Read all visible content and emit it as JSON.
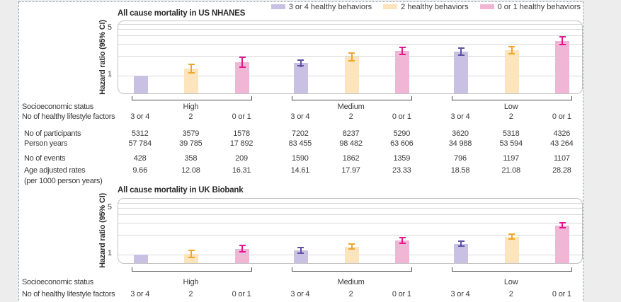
{
  "series": [
    {
      "name": "3 or 4",
      "legend_label": "3 or 4 healthy behaviors",
      "fill": "#c9c1e4",
      "error_color": "#5f51a5"
    },
    {
      "name": "2",
      "legend_label": "2 healthy behaviors",
      "fill": "#fce4bc",
      "error_color": "#f2a52b"
    },
    {
      "name": "0 or 1",
      "legend_label": "0 or 1 healthy behaviors",
      "fill": "#f1b6d6",
      "error_color": "#e3168f"
    }
  ],
  "colors": {
    "canvas_bg": "#ededed",
    "panel_bg": "#ffffff",
    "panel_border": "#7b90a5",
    "plot_border": "#c2c2c2",
    "gridline": "#d8d8d8",
    "bracket": "#4d4d4d",
    "text": "#333333"
  },
  "table": {
    "socio_label": "Socioeconomic status",
    "factors_label": "No of healthy lifestyle factors",
    "groups": [
      "High",
      "Medium",
      "Low"
    ],
    "factors": [
      "3 or 4",
      "2",
      "0 or 1",
      "3 or 4",
      "2",
      "0 or 1",
      "3 or 4",
      "2",
      "0 or 1"
    ],
    "rows": [
      {
        "label": "No of participants",
        "values": [
          "5312",
          "3579",
          "1578",
          "7202",
          "8237",
          "5290",
          "3620",
          "5318",
          "4326"
        ]
      },
      {
        "label": "Person years",
        "values": [
          "57 784",
          "39 785",
          "17 892",
          "83 455",
          "98 482",
          "63 606",
          "34 988",
          "53 594",
          "43 264"
        ]
      },
      {
        "label": "No of events",
        "values": [
          "428",
          "358",
          "209",
          "1590",
          "1862",
          "1359",
          "796",
          "1197",
          "1107"
        ]
      },
      {
        "label": "Age adjusted rates",
        "label2": "(per 1000 person years)",
        "values": [
          "9.66",
          "12.08",
          "16.31",
          "14.61",
          "17.97",
          "23.33",
          "18.58",
          "21.08",
          "28.28"
        ]
      }
    ]
  },
  "chart_data": [
    {
      "type": "bar",
      "title": "All cause mortality in US NHANES",
      "ylabel": "Hazard ratio (95% CI)",
      "yscale": "log",
      "ylim": [
        0.55,
        6.6
      ],
      "yticks": [
        "5",
        "1"
      ],
      "gridlines": [
        1,
        2,
        3,
        4,
        5,
        6
      ],
      "groups": [
        "High",
        "Medium",
        "Low"
      ],
      "series_labels": [
        "3 or 4",
        "2",
        "0 or 1"
      ],
      "bars": [
        {
          "group": "High",
          "factors": "3 or 4",
          "hr": 1.0,
          "lo": null,
          "hi": null
        },
        {
          "group": "High",
          "factors": "2",
          "hr": 1.27,
          "lo": 1.08,
          "hi": 1.5
        },
        {
          "group": "High",
          "factors": "0 or 1",
          "hr": 1.6,
          "lo": 1.32,
          "hi": 1.94
        },
        {
          "group": "Medium",
          "factors": "3 or 4",
          "hr": 1.55,
          "lo": 1.36,
          "hi": 1.78
        },
        {
          "group": "Medium",
          "factors": "2",
          "hr": 1.92,
          "lo": 1.64,
          "hi": 2.25
        },
        {
          "group": "Medium",
          "factors": "0 or 1",
          "hr": 2.37,
          "lo": 2.04,
          "hi": 2.75
        },
        {
          "group": "Low",
          "factors": "3 or 4",
          "hr": 2.32,
          "lo": 2.0,
          "hi": 2.7
        },
        {
          "group": "Low",
          "factors": "2",
          "hr": 2.4,
          "lo": 2.08,
          "hi": 2.8
        },
        {
          "group": "Low",
          "factors": "0 or 1",
          "hr": 3.3,
          "lo": 2.85,
          "hi": 3.9
        }
      ]
    },
    {
      "type": "bar",
      "title": "All cause mortality in UK Biobank",
      "ylabel": "Hazard ratio (95% CI)",
      "yscale": "log",
      "ylim": [
        0.7,
        7.0
      ],
      "yticks": [
        "5",
        "1"
      ],
      "gridlines": [
        1,
        2,
        3,
        4,
        5,
        6
      ],
      "groups": [
        "High",
        "Medium",
        "Low"
      ],
      "series_labels": [
        "3 or 4",
        "2",
        "0 or 1"
      ],
      "bars": [
        {
          "group": "High",
          "factors": "3 or 4",
          "hr": 1.0,
          "lo": null,
          "hi": null
        },
        {
          "group": "High",
          "factors": "2",
          "hr": 1.02,
          "lo": 0.88,
          "hi": 1.18
        },
        {
          "group": "High",
          "factors": "0 or 1",
          "hr": 1.22,
          "lo": 1.08,
          "hi": 1.4
        },
        {
          "group": "Medium",
          "factors": "3 or 4",
          "hr": 1.15,
          "lo": 1.03,
          "hi": 1.3
        },
        {
          "group": "Medium",
          "factors": "2",
          "hr": 1.31,
          "lo": 1.18,
          "hi": 1.47
        },
        {
          "group": "Medium",
          "factors": "0 or 1",
          "hr": 1.62,
          "lo": 1.45,
          "hi": 1.85
        },
        {
          "group": "Low",
          "factors": "3 or 4",
          "hr": 1.46,
          "lo": 1.31,
          "hi": 1.65
        },
        {
          "group": "Low",
          "factors": "2",
          "hr": 1.85,
          "lo": 1.66,
          "hi": 2.1
        },
        {
          "group": "Low",
          "factors": "0 or 1",
          "hr": 2.72,
          "lo": 2.45,
          "hi": 3.1
        }
      ]
    }
  ]
}
